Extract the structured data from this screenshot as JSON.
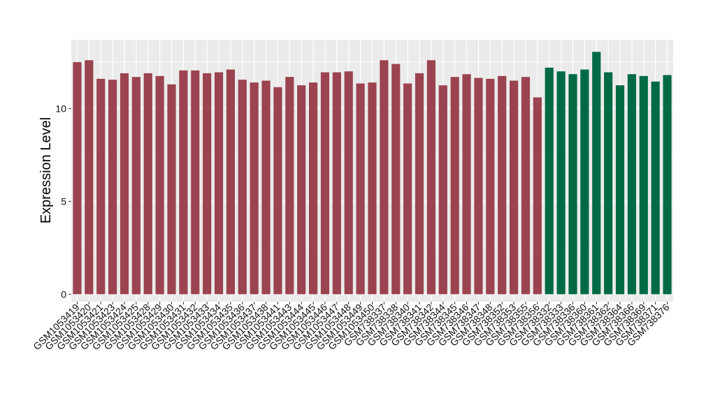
{
  "chart_data": {
    "type": "bar",
    "ylabel": "Expression Level",
    "xlabel": "",
    "ylim": [
      -0.4,
      13.7
    ],
    "yticks": [
      0,
      5,
      10
    ],
    "grid": true,
    "legend": "none",
    "colors": {
      "group1": "#9b4350",
      "group2": "#006a44",
      "panel": "#ebebeb",
      "grid": "#ffffff"
    },
    "categories": [
      "GSM1053419",
      "GSM1053420",
      "GSM1053421",
      "GSM1053423",
      "GSM1053424",
      "GSM1053425",
      "GSM1053428",
      "GSM1053429",
      "GSM1053430",
      "GSM1053431",
      "GSM1053432",
      "GSM1053433",
      "GSM1053434",
      "GSM1053435",
      "GSM1053436",
      "GSM1053437",
      "GSM1053438",
      "GSM1053441",
      "GSM1053443",
      "GSM1053444",
      "GSM1053445",
      "GSM1053446",
      "GSM1053447",
      "GSM1053448",
      "GSM1053449",
      "GSM1053450",
      "GSM738337",
      "GSM738338",
      "GSM738340",
      "GSM738341",
      "GSM738342",
      "GSM738344",
      "GSM738345",
      "GSM738346",
      "GSM738347",
      "GSM738348",
      "GSM738352",
      "GSM738353",
      "GSM738355",
      "GSM738356",
      "GSM738332",
      "GSM738333",
      "GSM738336",
      "GSM738360",
      "GSM738361",
      "GSM738362",
      "GSM738364",
      "GSM738366",
      "GSM738369",
      "GSM738371",
      "GSM738376"
    ],
    "values": [
      12.5,
      12.6,
      11.6,
      11.55,
      11.9,
      11.7,
      11.9,
      11.75,
      11.3,
      12.05,
      12.05,
      11.9,
      11.95,
      12.1,
      11.55,
      11.4,
      11.5,
      11.15,
      11.7,
      11.25,
      11.4,
      11.95,
      11.95,
      12.0,
      11.35,
      11.4,
      12.6,
      12.4,
      11.35,
      11.9,
      12.6,
      11.25,
      11.7,
      11.85,
      11.65,
      11.6,
      11.75,
      11.5,
      11.7,
      10.6,
      12.2,
      12.0,
      11.85,
      12.1,
      13.05,
      11.95,
      11.25,
      11.85,
      11.75,
      11.45,
      11.8
    ],
    "groups": [
      1,
      1,
      1,
      1,
      1,
      1,
      1,
      1,
      1,
      1,
      1,
      1,
      1,
      1,
      1,
      1,
      1,
      1,
      1,
      1,
      1,
      1,
      1,
      1,
      1,
      1,
      1,
      1,
      1,
      1,
      1,
      1,
      1,
      1,
      1,
      1,
      1,
      1,
      1,
      1,
      2,
      2,
      2,
      2,
      2,
      2,
      2,
      2,
      2,
      2,
      2
    ]
  }
}
